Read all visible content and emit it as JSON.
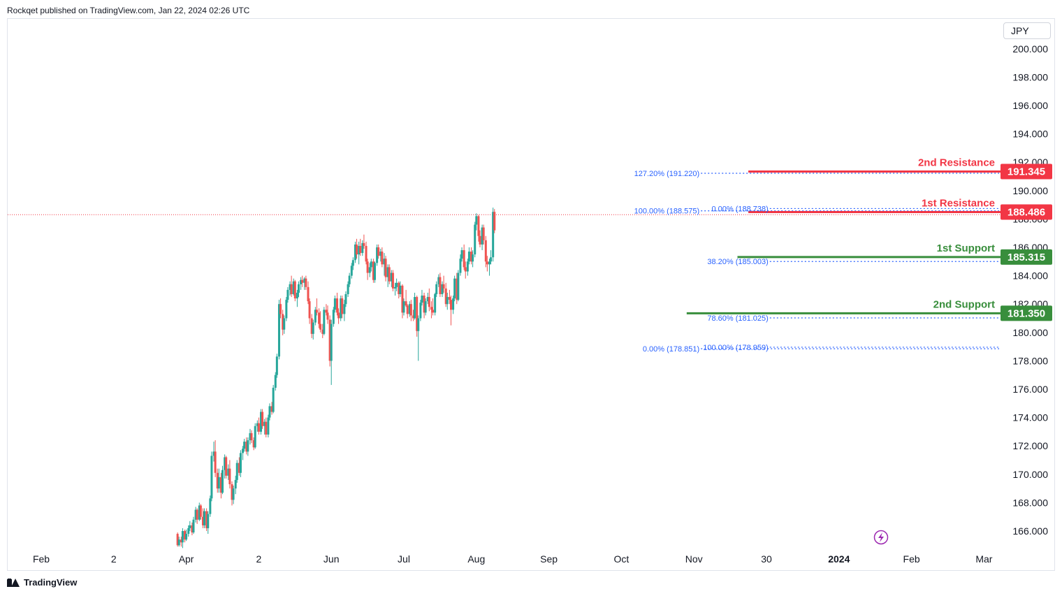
{
  "header": {
    "text": "Rockqet published on TradingView.com, Jan 22, 2024 02:26 UTC"
  },
  "footer": {
    "brand": "TradingView"
  },
  "currency": "JPY",
  "colors": {
    "up": "#26a69a",
    "down": "#ef5350",
    "resistance": "#f23645",
    "support": "#388e3c",
    "fib": "#2962ff",
    "last_price": "#f23645"
  },
  "chart_data": {
    "type": "candlestick",
    "title": "",
    "y_axis": {
      "min": 165,
      "max": 201,
      "ticks": [
        "200.000",
        "198.000",
        "196.000",
        "194.000",
        "192.000",
        "190.000",
        "188.000",
        "186.000",
        "184.000",
        "182.000",
        "180.000",
        "178.000",
        "176.000",
        "174.000",
        "172.000",
        "170.000",
        "168.000",
        "166.000"
      ],
      "tick_values": [
        200,
        198,
        196,
        194,
        192,
        190,
        188,
        186,
        184,
        182,
        180,
        178,
        176,
        174,
        172,
        170,
        168,
        166
      ]
    },
    "x_axis": {
      "labels": [
        {
          "t": 0.0,
          "text": "Feb"
        },
        {
          "t": 1.0,
          "text": "2"
        },
        {
          "t": 2.0,
          "text": "Apr"
        },
        {
          "t": 3.0,
          "text": "2"
        },
        {
          "t": 4.0,
          "text": "Jun"
        },
        {
          "t": 5.0,
          "text": "Jul"
        },
        {
          "t": 6.0,
          "text": "Aug"
        },
        {
          "t": 7.0,
          "text": "Sep"
        },
        {
          "t": 8.0,
          "text": "Oct"
        },
        {
          "t": 9.0,
          "text": "Nov"
        },
        {
          "t": 10.0,
          "text": "30"
        },
        {
          "t": 11.0,
          "text": "2024",
          "bold": true
        },
        {
          "t": 12.0,
          "text": "Feb"
        },
        {
          "t": 13.0,
          "text": "Mar"
        }
      ]
    },
    "levels": [
      {
        "name": "2nd Resistance",
        "value": 191.345,
        "label": "191.345",
        "kind": "resistance",
        "t_start": 9.75
      },
      {
        "name": "1st Resistance",
        "value": 188.486,
        "label": "188.486",
        "kind": "resistance",
        "t_start": 9.75
      },
      {
        "name": "1st Support",
        "value": 185.315,
        "label": "185.315",
        "kind": "support",
        "t_start": 9.6
      },
      {
        "name": "2nd Support",
        "value": 181.35,
        "label": "181.350",
        "kind": "support",
        "t_start": 8.9
      }
    ],
    "last_price": 188.3,
    "fib_labels": [
      {
        "text": "127.20% (191.220)",
        "value": 191.22,
        "t": 9.0
      },
      {
        "text": "100.00% (188.575)",
        "value": 188.575,
        "t": 9.0
      },
      {
        "text": "0.00% (188.738)",
        "value": 188.738,
        "t": 9.95
      },
      {
        "text": "38.20% (185.003)",
        "value": 185.003,
        "t": 9.95
      },
      {
        "text": "78.60% (181.025)",
        "value": 181.025,
        "t": 9.95
      },
      {
        "text": "0.00% (178.851)",
        "value": 178.851,
        "t": 9.0
      },
      {
        "text": "100.00% (178.959)",
        "value": 178.959,
        "t": 9.95
      }
    ],
    "candles": [
      [
        1.88,
        165.8,
        165.9,
        164.9,
        165.0
      ],
      [
        1.9,
        165.0,
        165.6,
        164.9,
        165.4
      ],
      [
        1.93,
        165.4,
        165.6,
        164.9,
        165.2
      ],
      [
        1.95,
        165.2,
        166.2,
        164.8,
        166.0
      ],
      [
        1.98,
        166.0,
        166.1,
        165.2,
        165.4
      ],
      [
        2.0,
        165.4,
        166.1,
        165.3,
        165.8
      ],
      [
        2.03,
        165.8,
        166.4,
        165.6,
        166.2
      ],
      [
        2.05,
        166.2,
        166.7,
        166.0,
        166.4
      ],
      [
        2.08,
        166.4,
        166.6,
        165.7,
        165.9
      ],
      [
        2.1,
        165.9,
        167.0,
        165.8,
        166.8
      ],
      [
        2.13,
        166.8,
        167.7,
        166.6,
        167.5
      ],
      [
        2.15,
        167.5,
        167.6,
        166.5,
        166.8
      ],
      [
        2.18,
        166.8,
        168.0,
        166.7,
        167.8
      ],
      [
        2.2,
        167.8,
        167.9,
        166.8,
        167.0
      ],
      [
        2.23,
        167.0,
        167.6,
        166.2,
        166.4
      ],
      [
        2.25,
        166.4,
        167.6,
        166.2,
        167.4
      ],
      [
        2.28,
        167.4,
        167.6,
        166.0,
        166.2
      ],
      [
        2.3,
        166.2,
        167.4,
        165.8,
        167.2
      ],
      [
        2.33,
        167.2,
        168.5,
        167.0,
        168.3
      ],
      [
        2.35,
        168.3,
        171.6,
        168.1,
        171.3
      ],
      [
        2.38,
        171.3,
        172.3,
        170.9,
        171.6
      ],
      [
        2.4,
        171.6,
        172.4,
        169.8,
        170.1
      ],
      [
        2.43,
        170.1,
        170.4,
        168.7,
        169.0
      ],
      [
        2.45,
        169.0,
        170.4,
        168.7,
        169.8
      ],
      [
        2.48,
        169.8,
        170.1,
        168.3,
        168.7
      ],
      [
        2.5,
        168.7,
        170.6,
        168.6,
        170.3
      ],
      [
        2.53,
        170.3,
        171.4,
        169.7,
        171.2
      ],
      [
        2.55,
        171.2,
        171.3,
        169.7,
        169.9
      ],
      [
        2.58,
        169.9,
        170.7,
        169.6,
        170.4
      ],
      [
        2.6,
        170.4,
        171.0,
        169.0,
        169.3
      ],
      [
        2.63,
        169.3,
        169.5,
        167.8,
        168.2
      ],
      [
        2.65,
        168.2,
        169.2,
        167.9,
        169.0
      ],
      [
        2.68,
        169.0,
        169.9,
        168.6,
        169.6
      ],
      [
        2.7,
        169.6,
        171.0,
        169.4,
        170.8
      ],
      [
        2.73,
        170.8,
        171.2,
        169.9,
        170.1
      ],
      [
        2.75,
        170.1,
        171.7,
        169.8,
        171.5
      ],
      [
        2.78,
        171.5,
        172.0,
        171.0,
        171.8
      ],
      [
        2.8,
        171.8,
        172.5,
        171.6,
        172.3
      ],
      [
        2.83,
        172.3,
        172.6,
        171.4,
        171.6
      ],
      [
        2.85,
        171.6,
        172.6,
        171.3,
        172.4
      ],
      [
        2.88,
        172.4,
        173.2,
        172.1,
        172.9
      ],
      [
        2.9,
        172.9,
        173.1,
        172.2,
        172.4
      ],
      [
        2.93,
        172.4,
        172.6,
        171.7,
        171.9
      ],
      [
        2.95,
        171.9,
        173.6,
        171.8,
        173.4
      ],
      [
        2.98,
        173.4,
        173.8,
        173.0,
        173.6
      ],
      [
        3.0,
        173.6,
        174.0,
        172.8,
        173.0
      ],
      [
        3.03,
        173.0,
        174.6,
        172.8,
        174.4
      ],
      [
        3.05,
        174.4,
        174.6,
        173.2,
        173.4
      ],
      [
        3.08,
        173.4,
        173.9,
        172.8,
        173.7
      ],
      [
        3.1,
        173.7,
        174.0,
        172.6,
        172.8
      ],
      [
        3.13,
        172.8,
        174.2,
        172.6,
        174.0
      ],
      [
        3.15,
        174.0,
        175.0,
        173.8,
        174.8
      ],
      [
        3.18,
        174.8,
        175.1,
        174.2,
        174.4
      ],
      [
        3.2,
        174.4,
        176.3,
        174.3,
        176.1
      ],
      [
        3.23,
        176.1,
        177.2,
        175.9,
        177.0
      ],
      [
        3.25,
        177.0,
        178.5,
        176.8,
        178.3
      ],
      [
        3.28,
        178.3,
        182.3,
        178.1,
        182.0
      ],
      [
        3.3,
        182.0,
        182.4,
        181.0,
        181.3
      ],
      [
        3.33,
        181.3,
        181.6,
        179.8,
        180.2
      ],
      [
        3.35,
        180.2,
        181.2,
        179.9,
        181.0
      ],
      [
        3.38,
        181.0,
        182.5,
        180.8,
        182.3
      ],
      [
        3.4,
        182.3,
        183.2,
        182.1,
        183.0
      ],
      [
        3.43,
        183.0,
        183.6,
        182.6,
        183.4
      ],
      [
        3.45,
        183.4,
        184.0,
        182.5,
        182.7
      ],
      [
        3.48,
        182.7,
        183.8,
        182.6,
        183.6
      ],
      [
        3.5,
        183.6,
        183.7,
        182.2,
        182.4
      ],
      [
        3.53,
        182.4,
        183.0,
        181.8,
        182.8
      ],
      [
        3.55,
        182.8,
        183.6,
        182.5,
        183.4
      ],
      [
        3.58,
        183.4,
        183.9,
        183.0,
        183.7
      ],
      [
        3.6,
        183.7,
        184.0,
        183.2,
        183.5
      ],
      [
        3.63,
        183.5,
        183.9,
        183.0,
        183.8
      ],
      [
        3.65,
        183.8,
        184.0,
        183.0,
        183.2
      ],
      [
        3.68,
        183.2,
        183.6,
        182.0,
        182.2
      ],
      [
        3.7,
        182.2,
        182.4,
        180.6,
        181.0
      ],
      [
        3.73,
        181.0,
        181.3,
        179.6,
        179.9
      ],
      [
        3.75,
        179.9,
        180.9,
        179.5,
        180.7
      ],
      [
        3.78,
        180.7,
        181.8,
        180.5,
        181.6
      ],
      [
        3.8,
        181.6,
        182.4,
        181.2,
        181.4
      ],
      [
        3.83,
        181.4,
        181.7,
        180.3,
        180.6
      ],
      [
        3.85,
        180.6,
        181.5,
        180.0,
        180.2
      ],
      [
        3.88,
        180.2,
        180.6,
        179.6,
        179.9
      ],
      [
        3.9,
        179.9,
        181.8,
        179.8,
        181.6
      ],
      [
        3.93,
        181.6,
        182.0,
        181.2,
        181.4
      ],
      [
        3.95,
        181.4,
        181.9,
        180.6,
        180.9
      ],
      [
        3.98,
        180.9,
        181.2,
        177.6,
        178.0
      ],
      [
        4.0,
        178.0,
        180.9,
        176.3,
        180.6
      ],
      [
        4.03,
        180.6,
        181.8,
        180.4,
        181.6
      ],
      [
        4.05,
        181.6,
        182.6,
        181.4,
        182.4
      ],
      [
        4.08,
        182.4,
        182.8,
        181.2,
        181.4
      ],
      [
        4.1,
        181.4,
        181.7,
        180.6,
        181.0
      ],
      [
        4.13,
        181.0,
        182.6,
        180.8,
        182.4
      ],
      [
        4.15,
        182.4,
        182.6,
        181.0,
        181.3
      ],
      [
        4.18,
        181.3,
        182.3,
        180.8,
        182.0
      ],
      [
        4.2,
        182.0,
        182.9,
        181.8,
        182.7
      ],
      [
        4.23,
        182.7,
        183.6,
        182.5,
        183.4
      ],
      [
        4.25,
        183.4,
        184.2,
        183.2,
        184.0
      ],
      [
        4.28,
        184.0,
        184.9,
        183.8,
        184.7
      ],
      [
        4.3,
        184.7,
        185.3,
        184.4,
        185.1
      ],
      [
        4.33,
        185.1,
        186.4,
        184.9,
        186.2
      ],
      [
        4.35,
        186.2,
        186.6,
        185.2,
        185.5
      ],
      [
        4.38,
        185.5,
        186.4,
        184.8,
        186.1
      ],
      [
        4.4,
        186.1,
        186.6,
        185.4,
        185.6
      ],
      [
        4.43,
        185.6,
        186.5,
        185.4,
        186.3
      ],
      [
        4.45,
        186.3,
        186.9,
        185.9,
        186.1
      ],
      [
        4.48,
        186.1,
        186.4,
        184.8,
        185.0
      ],
      [
        4.5,
        185.0,
        185.2,
        183.7,
        184.2
      ],
      [
        4.53,
        184.2,
        184.9,
        183.9,
        184.6
      ],
      [
        4.55,
        184.6,
        185.2,
        184.3,
        185.0
      ],
      [
        4.58,
        185.0,
        185.2,
        183.5,
        183.7
      ],
      [
        4.6,
        183.7,
        185.0,
        183.5,
        184.9
      ],
      [
        4.63,
        184.9,
        186.2,
        184.7,
        186.0
      ],
      [
        4.65,
        186.0,
        186.2,
        185.2,
        185.4
      ],
      [
        4.68,
        185.4,
        185.9,
        185.0,
        185.7
      ],
      [
        4.7,
        185.7,
        186.0,
        184.6,
        184.8
      ],
      [
        4.73,
        184.8,
        185.6,
        184.0,
        185.2
      ],
      [
        4.75,
        185.2,
        185.4,
        183.6,
        183.9
      ],
      [
        4.78,
        183.9,
        184.8,
        183.2,
        184.6
      ],
      [
        4.8,
        184.6,
        184.8,
        183.4,
        183.6
      ],
      [
        4.83,
        183.6,
        184.4,
        183.2,
        184.2
      ],
      [
        4.85,
        184.2,
        184.4,
        182.9,
        183.1
      ],
      [
        4.88,
        183.1,
        183.5,
        182.6,
        183.2
      ],
      [
        4.9,
        183.2,
        183.8,
        182.9,
        183.5
      ],
      [
        4.93,
        183.5,
        183.6,
        182.4,
        182.7
      ],
      [
        4.95,
        182.7,
        183.6,
        182.5,
        183.3
      ],
      [
        4.98,
        183.3,
        183.4,
        181.0,
        181.4
      ],
      [
        5.0,
        181.4,
        182.4,
        181.2,
        182.2
      ],
      [
        5.03,
        182.2,
        183.0,
        181.8,
        181.9
      ],
      [
        5.05,
        181.9,
        182.0,
        181.0,
        181.3
      ],
      [
        5.08,
        181.3,
        182.2,
        181.1,
        182.0
      ],
      [
        5.1,
        182.0,
        182.3,
        180.8,
        181.2
      ],
      [
        5.13,
        181.2,
        181.6,
        180.8,
        181.0
      ],
      [
        5.15,
        181.0,
        182.8,
        180.9,
        182.5
      ],
      [
        5.18,
        182.5,
        182.6,
        179.7,
        180.1
      ],
      [
        5.2,
        180.1,
        181.2,
        178.0,
        181.0
      ],
      [
        5.23,
        181.0,
        182.3,
        180.8,
        182.1
      ],
      [
        5.25,
        182.1,
        183.0,
        181.9,
        182.6
      ],
      [
        5.28,
        182.6,
        182.8,
        181.0,
        181.4
      ],
      [
        5.3,
        181.4,
        182.4,
        181.2,
        182.2
      ],
      [
        5.33,
        182.2,
        182.8,
        182.0,
        182.5
      ],
      [
        5.35,
        182.5,
        183.1,
        181.5,
        181.8
      ],
      [
        5.38,
        181.8,
        182.2,
        181.0,
        181.6
      ],
      [
        5.4,
        181.6,
        182.4,
        181.2,
        181.4
      ],
      [
        5.43,
        181.4,
        182.8,
        181.2,
        182.7
      ],
      [
        5.45,
        182.7,
        183.6,
        182.5,
        183.4
      ],
      [
        5.48,
        183.4,
        184.1,
        183.2,
        183.9
      ],
      [
        5.5,
        183.9,
        184.2,
        182.5,
        182.7
      ],
      [
        5.53,
        182.7,
        183.6,
        182.5,
        183.4
      ],
      [
        5.55,
        183.4,
        184.0,
        182.8,
        183.1
      ],
      [
        5.58,
        183.1,
        183.5,
        181.8,
        182.0
      ],
      [
        5.6,
        182.0,
        182.8,
        181.6,
        182.5
      ],
      [
        5.63,
        182.5,
        183.0,
        182.0,
        182.3
      ],
      [
        5.65,
        182.3,
        182.6,
        180.5,
        181.6
      ],
      [
        5.68,
        181.6,
        182.6,
        181.3,
        182.4
      ],
      [
        5.7,
        182.4,
        184.0,
        182.2,
        183.8
      ],
      [
        5.73,
        183.8,
        184.2,
        182.0,
        182.3
      ],
      [
        5.75,
        182.3,
        184.4,
        182.2,
        184.2
      ],
      [
        5.78,
        184.2,
        185.5,
        184.0,
        185.2
      ],
      [
        5.8,
        185.2,
        186.0,
        185.0,
        185.8
      ],
      [
        5.83,
        185.8,
        186.2,
        184.4,
        184.6
      ],
      [
        5.85,
        184.6,
        185.0,
        183.8,
        184.3
      ],
      [
        5.88,
        184.3,
        185.2,
        184.0,
        185.0
      ],
      [
        5.9,
        185.0,
        186.0,
        184.8,
        185.7
      ],
      [
        5.93,
        185.7,
        186.0,
        184.8,
        185.0
      ],
      [
        5.95,
        185.0,
        185.8,
        184.6,
        185.5
      ],
      [
        5.98,
        185.5,
        187.8,
        185.3,
        187.6
      ],
      [
        6.0,
        187.6,
        188.4,
        187.2,
        188.2
      ],
      [
        6.03,
        188.2,
        188.3,
        186.4,
        186.8
      ],
      [
        6.05,
        186.8,
        187.2,
        186.0,
        186.2
      ],
      [
        6.08,
        186.2,
        187.6,
        185.8,
        187.4
      ],
      [
        6.1,
        187.4,
        187.6,
        186.2,
        186.5
      ],
      [
        6.13,
        186.5,
        186.8,
        184.6,
        185.0
      ],
      [
        6.15,
        185.0,
        185.4,
        184.3,
        184.8
      ],
      [
        6.18,
        184.8,
        185.2,
        184.0,
        185.0
      ],
      [
        6.2,
        185.0,
        185.8,
        184.8,
        185.3
      ],
      [
        6.23,
        185.3,
        188.8,
        185.0,
        188.5
      ],
      [
        6.25,
        188.5,
        188.7,
        187.0,
        187.2
      ]
    ]
  }
}
